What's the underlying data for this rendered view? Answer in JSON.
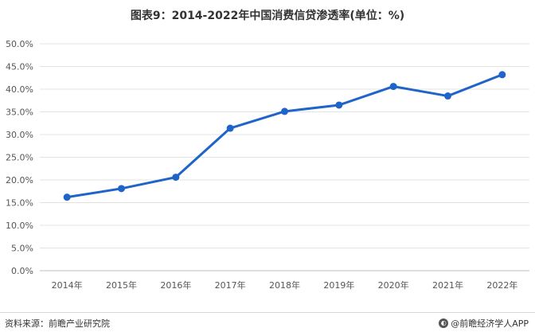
{
  "chart_data": {
    "type": "line",
    "title": "图表9：2014-2022年中国消费信贷渗透率(单位：%)",
    "categories": [
      "2014年",
      "2015年",
      "2016年",
      "2017年",
      "2018年",
      "2019年",
      "2020年",
      "2021年",
      "2022年"
    ],
    "series": [
      {
        "values": [
          16.2,
          18.1,
          20.6,
          31.4,
          35.1,
          36.5,
          40.6,
          38.5,
          43.2
        ]
      }
    ],
    "y_ticks": [
      "0.0%",
      "5.0%",
      "10.0%",
      "15.0%",
      "20.0%",
      "25.0%",
      "30.0%",
      "35.0%",
      "40.0%",
      "45.0%",
      "50.0%"
    ],
    "ylim": [
      0,
      50
    ],
    "grid": true,
    "line_color": "#1f64c8"
  },
  "footer": {
    "source": "资料来源：前瞻产业研究院",
    "brand": "@前瞻经济学人APP",
    "brand_icon": "qianzhan-logo-icon"
  }
}
